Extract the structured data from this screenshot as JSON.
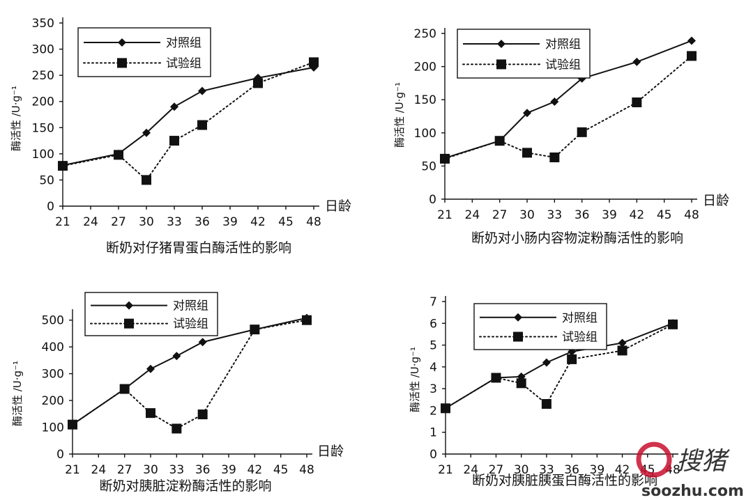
{
  "chart_data": [
    {
      "type": "line",
      "title": "断奶对仔猪胃蛋白酶活性的影响",
      "xlabel": "日龄",
      "ylabel": "酶活性 /U·g⁻¹",
      "xticks": [
        21,
        24,
        27,
        30,
        33,
        36,
        39,
        42,
        45,
        48
      ],
      "yticks": [
        0,
        50,
        100,
        150,
        200,
        250,
        300,
        350
      ],
      "xlim": [
        21,
        48
      ],
      "ylim": [
        0,
        350
      ],
      "legend": "top-left",
      "series": [
        {
          "name": "对照组",
          "marker": "diamond",
          "style": "solid",
          "x": [
            21,
            27,
            30,
            33,
            36,
            42,
            48
          ],
          "values": [
            78,
            100,
            140,
            190,
            220,
            245,
            265
          ]
        },
        {
          "name": "试验组",
          "marker": "square",
          "style": "dotted",
          "x": [
            21,
            27,
            30,
            33,
            36,
            42,
            48
          ],
          "values": [
            77,
            98,
            50,
            125,
            155,
            235,
            275
          ]
        }
      ]
    },
    {
      "type": "line",
      "title": "断奶对小肠内容物淀粉酶活性的影响",
      "xlabel": "日龄",
      "ylabel": "酶活性 /U·g⁻¹",
      "xticks": [
        21,
        24,
        27,
        30,
        33,
        36,
        39,
        42,
        45,
        48
      ],
      "yticks": [
        0,
        50,
        100,
        150,
        200,
        250
      ],
      "xlim": [
        21,
        48
      ],
      "ylim": [
        0,
        250
      ],
      "legend": "top-left",
      "series": [
        {
          "name": "对照组",
          "marker": "diamond",
          "style": "solid",
          "x": [
            21,
            27,
            30,
            33,
            36,
            42,
            48
          ],
          "values": [
            62,
            88,
            130,
            147,
            182,
            207,
            239
          ]
        },
        {
          "name": "试验组",
          "marker": "square",
          "style": "dotted",
          "x": [
            21,
            27,
            30,
            33,
            36,
            42,
            48
          ],
          "values": [
            61,
            88,
            70,
            63,
            101,
            146,
            216
          ]
        }
      ]
    },
    {
      "type": "line",
      "title": "断奶对胰脏淀粉酶活性的影响",
      "xlabel": "日龄",
      "ylabel": "酶活性 /U·g⁻¹",
      "xticks": [
        21,
        24,
        27,
        30,
        33,
        36,
        39,
        42,
        45,
        48
      ],
      "yticks": [
        0,
        100,
        200,
        300,
        400,
        500
      ],
      "xlim": [
        21,
        48
      ],
      "ylim": [
        0,
        520
      ],
      "legend": "top-left",
      "series": [
        {
          "name": "对照组",
          "marker": "diamond",
          "style": "solid",
          "x": [
            21,
            27,
            30,
            33,
            36,
            42,
            48
          ],
          "values": [
            110,
            243,
            318,
            366,
            418,
            465,
            508
          ]
        },
        {
          "name": "试验组",
          "marker": "square",
          "style": "dotted",
          "x": [
            21,
            27,
            30,
            33,
            36,
            42,
            48
          ],
          "values": [
            110,
            243,
            153,
            95,
            148,
            465,
            500
          ]
        }
      ]
    },
    {
      "type": "line",
      "title": "断奶对胰脏胰蛋白酶活性的影响",
      "xlabel": "",
      "ylabel": "酶活性 /U·g⁻¹",
      "xticks": [
        21,
        24,
        27,
        30,
        33,
        36,
        39,
        42,
        45,
        48
      ],
      "yticks": [
        0,
        1,
        2,
        3,
        4,
        5,
        6,
        7
      ],
      "xlim": [
        21,
        48
      ],
      "ylim": [
        0,
        7
      ],
      "legend": "top-left",
      "series": [
        {
          "name": "对照组",
          "marker": "diamond",
          "style": "solid",
          "x": [
            21,
            27,
            30,
            33,
            36,
            42,
            48
          ],
          "values": [
            2.1,
            3.5,
            3.55,
            4.2,
            4.7,
            5.1,
            6.0
          ]
        },
        {
          "name": "试验组",
          "marker": "square",
          "style": "dotted",
          "x": [
            21,
            27,
            30,
            33,
            36,
            42,
            48
          ],
          "values": [
            2.1,
            3.5,
            3.25,
            2.3,
            4.35,
            4.75,
            5.95
          ]
        }
      ]
    }
  ],
  "watermark": {
    "text": "搜猪",
    "url_text": "soozhu.com",
    "color": "#c8102e"
  }
}
